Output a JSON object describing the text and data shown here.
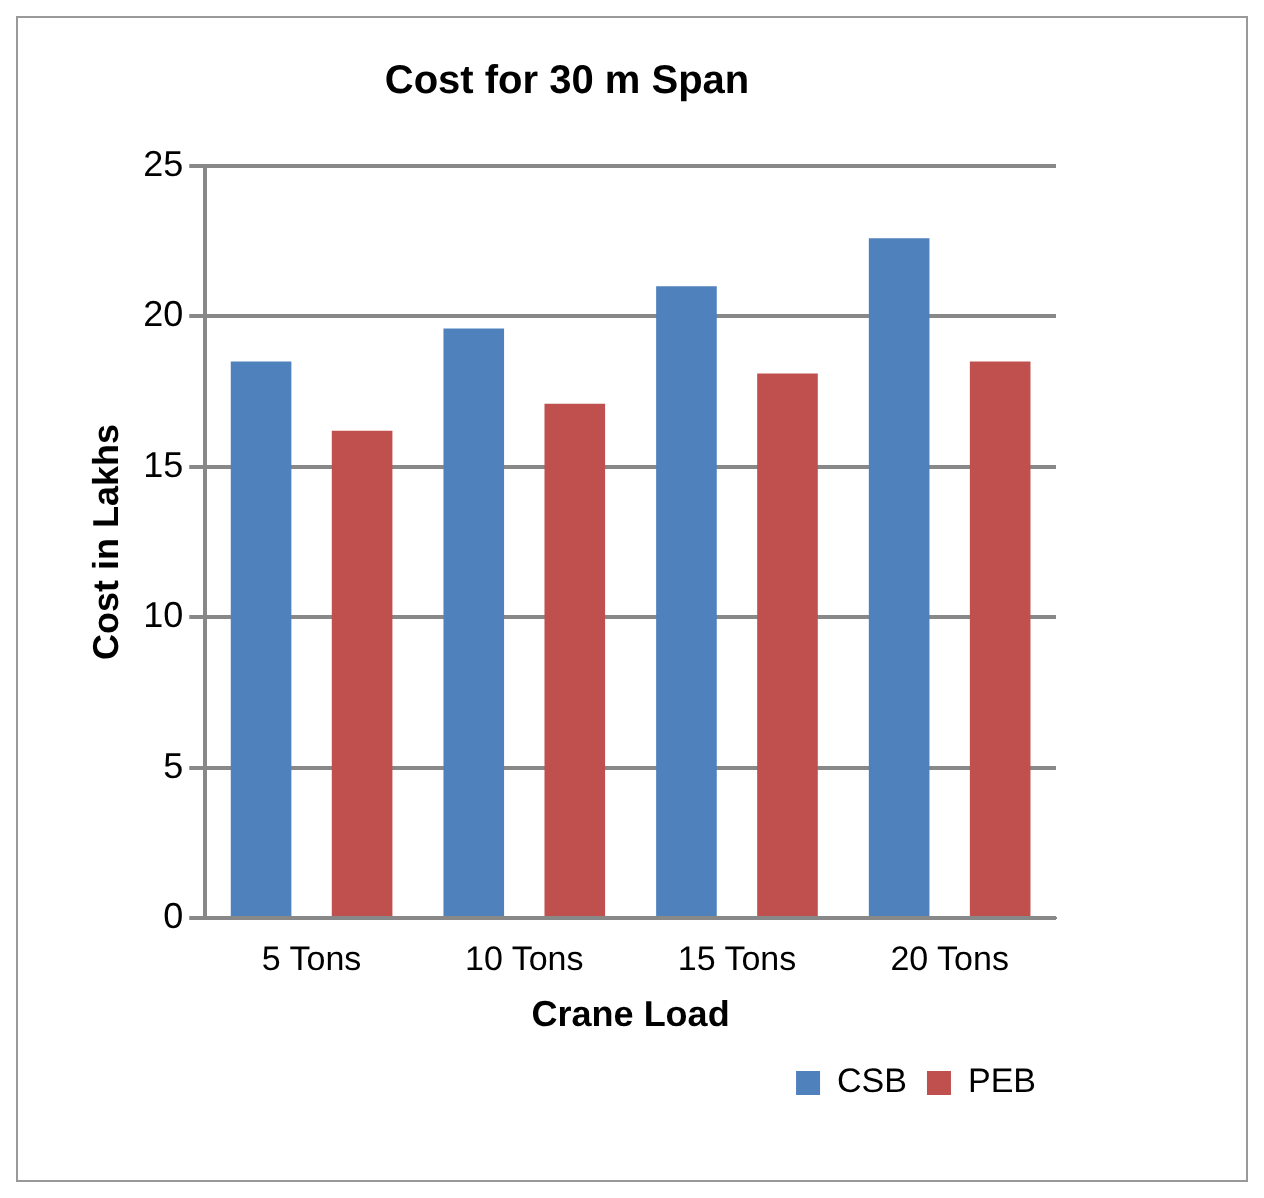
{
  "chart_data": {
    "type": "bar",
    "title": "Cost for 30 m Span",
    "xlabel": "Crane Load",
    "ylabel": "Cost in Lakhs",
    "categories": [
      "5 Tons",
      "10 Tons",
      "15 Tons",
      "20 Tons"
    ],
    "series": [
      {
        "name": "CSB",
        "color": "#4f81bd",
        "values": [
          18.5,
          19.6,
          21.0,
          22.6
        ]
      },
      {
        "name": "PEB",
        "color": "#c0504d",
        "values": [
          16.2,
          17.1,
          18.1,
          18.5
        ]
      }
    ],
    "ylim": [
      0,
      25
    ],
    "yticks": [
      0,
      5,
      10,
      15,
      20,
      25
    ],
    "grid": "y",
    "legend": "bottom right"
  }
}
